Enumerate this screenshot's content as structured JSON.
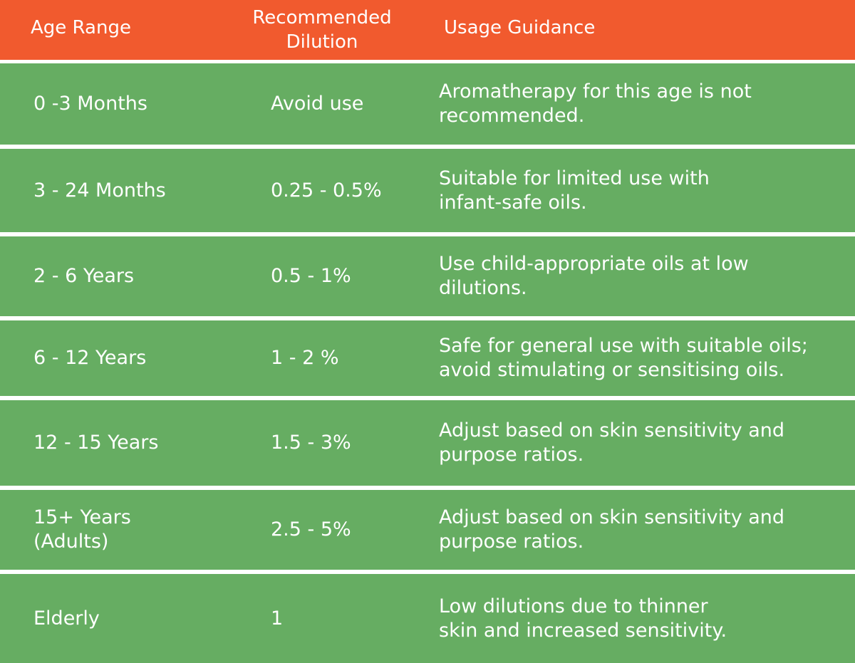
{
  "table": {
    "headers": {
      "age": "Age Range",
      "dilution": "Recommended\nDilution",
      "usage": "Usage Guidance"
    },
    "colors": {
      "header_bg": "#f15a2e",
      "row_bg": "#66ad62",
      "divider": "#ffffff"
    },
    "rows": [
      {
        "age": "0 -3 Months",
        "dilution": "Avoid use",
        "usage": "Aromatherapy for this age is not\nrecommended."
      },
      {
        "age": "3 - 24 Months",
        "dilution": "0.25 - 0.5%",
        "usage": "Suitable for limited use with\ninfant-safe oils."
      },
      {
        "age": "2 - 6 Years",
        "dilution": "0.5 - 1%",
        "usage": "Use child-appropriate oils at low\ndilutions."
      },
      {
        "age": "6 - 12 Years",
        "dilution": "1 - 2 %",
        "usage": "Safe for general use with suitable oils;\navoid stimulating or sensitising oils."
      },
      {
        "age": "12 - 15 Years",
        "dilution": "1.5 - 3%",
        "usage": "Adjust based on skin sensitivity and\npurpose ratios."
      },
      {
        "age": "15+ Years\n(Adults)",
        "dilution": "2.5 - 5%",
        "usage": "Adjust based on skin sensitivity and\npurpose ratios."
      },
      {
        "age": "Elderly",
        "dilution": "1",
        "usage": "Low dilutions due to thinner\nskin and increased sensitivity."
      }
    ]
  }
}
